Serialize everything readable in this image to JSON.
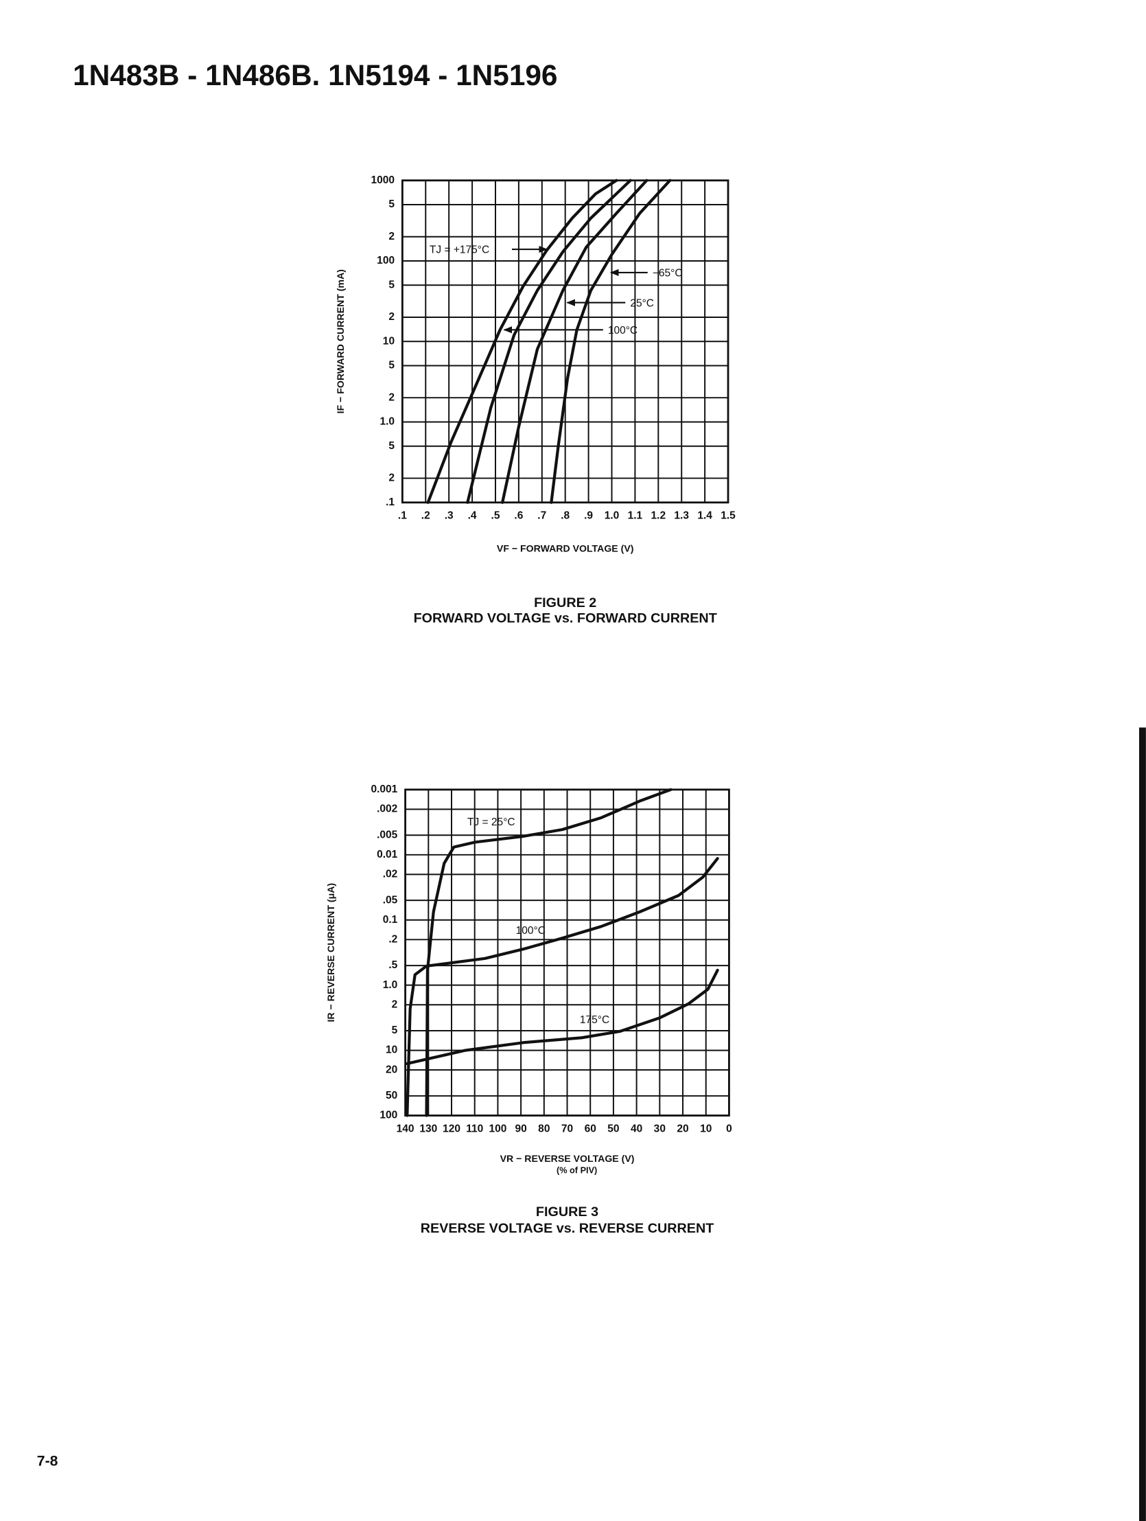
{
  "title": "1N483B - 1N486B. 1N5194 - 1N5196",
  "page_number": "7-8",
  "chart_data": [
    {
      "type": "line",
      "figure": "FIGURE 2",
      "title": "FORWARD VOLTAGE vs. FORWARD CURRENT",
      "xlabel": "VF − FORWARD VOLTAGE (V)",
      "ylabel": "IF − FORWARD CURRENT (mA)",
      "yscale": "log",
      "grid": true,
      "xlim": [
        0.1,
        1.5
      ],
      "xticks": [
        {
          "value": 0.1,
          "label": ".1"
        },
        {
          "value": 0.2,
          "label": ".2"
        },
        {
          "value": 0.3,
          "label": ".3"
        },
        {
          "value": 0.4,
          "label": ".4"
        },
        {
          "value": 0.5,
          "label": ".5"
        },
        {
          "value": 0.6,
          "label": ".6"
        },
        {
          "value": 0.7,
          "label": ".7"
        },
        {
          "value": 0.8,
          "label": ".8"
        },
        {
          "value": 0.9,
          "label": ".9"
        },
        {
          "value": 1.0,
          "label": "1.0"
        },
        1.1,
        1.2,
        1.3,
        1.4,
        1.5
      ],
      "ylim": [
        0.1,
        1000
      ],
      "yticks": [
        {
          "value": 0.1,
          "label": ".1"
        },
        {
          "value": 0.2,
          "label": "2"
        },
        {
          "value": 0.5,
          "label": "5"
        },
        {
          "value": 1,
          "label": "1.0"
        },
        2,
        5,
        10,
        {
          "value": 20,
          "label": "2"
        },
        {
          "value": 50,
          "label": "5"
        },
        100,
        {
          "value": 200,
          "label": "2"
        },
        {
          "value": 500,
          "label": "5"
        },
        1000
      ],
      "series": [
        {
          "name": "TJ = +175°C",
          "color": "#111111",
          "x": [
            0.21,
            0.31,
            0.41,
            0.52,
            0.62,
            0.72,
            0.83,
            0.93,
            1.02
          ],
          "values": [
            0.1,
            0.57,
            2.6,
            14,
            49,
            135,
            340,
            680,
            1000
          ]
        },
        {
          "name": "100°C",
          "color": "#111111",
          "x": [
            0.38,
            0.48,
            0.58,
            0.68,
            0.79,
            0.91,
            1.08
          ],
          "values": [
            0.1,
            1.5,
            12,
            43,
            130,
            340,
            1000
          ]
        },
        {
          "name": "25°C",
          "color": "#111111",
          "x": [
            0.53,
            0.6,
            0.68,
            0.79,
            0.89,
            1.02,
            1.15
          ],
          "values": [
            0.1,
            0.87,
            8,
            43,
            148,
            390,
            1000
          ]
        },
        {
          "name": "−65°C",
          "color": "#111111",
          "x": [
            0.74,
            0.77,
            0.81,
            0.85,
            0.91,
            1.0,
            1.12,
            1.25
          ],
          "values": [
            0.1,
            0.5,
            3.5,
            14,
            43,
            120,
            390,
            1000
          ]
        }
      ]
    },
    {
      "type": "line",
      "figure": "FIGURE 3",
      "title": "REVERSE VOLTAGE vs. REVERSE CURRENT",
      "xlabel": "VR − REVERSE VOLTAGE (V)",
      "xlabel_note": "(% of PIV)",
      "ylabel": "IR − REVERSE CURRENT (μA)",
      "yscale": "log",
      "grid": true,
      "xlim": [
        140,
        0
      ],
      "xticks": [
        140,
        130,
        120,
        110,
        100,
        90,
        80,
        70,
        60,
        50,
        40,
        30,
        20,
        10,
        0
      ],
      "ylim": [
        100,
        0.001
      ],
      "yticks": [
        0.001,
        {
          "value": 0.002,
          "label": ".002"
        },
        {
          "value": 0.005,
          "label": ".005"
        },
        0.01,
        {
          "value": 0.02,
          "label": ".02"
        },
        {
          "value": 0.05,
          "label": ".05"
        },
        0.1,
        {
          "value": 0.2,
          "label": ".2"
        },
        {
          "value": 0.5,
          "label": ".5"
        },
        {
          "value": 1,
          "label": "1.0"
        },
        2,
        5,
        10,
        20,
        50,
        100
      ],
      "series": [
        {
          "name": "TJ = 25°C",
          "color": "#111111",
          "x": [
            130.8,
            130.4,
            127.8,
            123.2,
            119,
            109.8,
            88.9,
            72.1,
            55.3,
            38.6,
            25.2
          ],
          "values": [
            100,
            0.59,
            0.075,
            0.0135,
            0.0076,
            0.0064,
            0.0052,
            0.0041,
            0.0027,
            0.0015,
            0.001
          ]
        },
        {
          "name": "100°C",
          "color": "#111111",
          "x": [
            139.2,
            137.9,
            135.8,
            130.8,
            105.6,
            88.9,
            72.1,
            55.3,
            38.6,
            21.8,
            11.3,
            5.0
          ],
          "values": [
            100,
            2.3,
            0.69,
            0.51,
            0.39,
            0.28,
            0.19,
            0.126,
            0.075,
            0.042,
            0.022,
            0.0114
          ]
        },
        {
          "name": "175°C",
          "color": "#111111",
          "x": [
            139.2,
            114,
            88.9,
            63.7,
            47.0,
            30.2,
            17.6,
            9.2,
            5.0
          ],
          "values": [
            16,
            10,
            7.6,
            6.4,
            5.1,
            3.2,
            1.94,
            1.16,
            0.59
          ]
        }
      ]
    }
  ]
}
